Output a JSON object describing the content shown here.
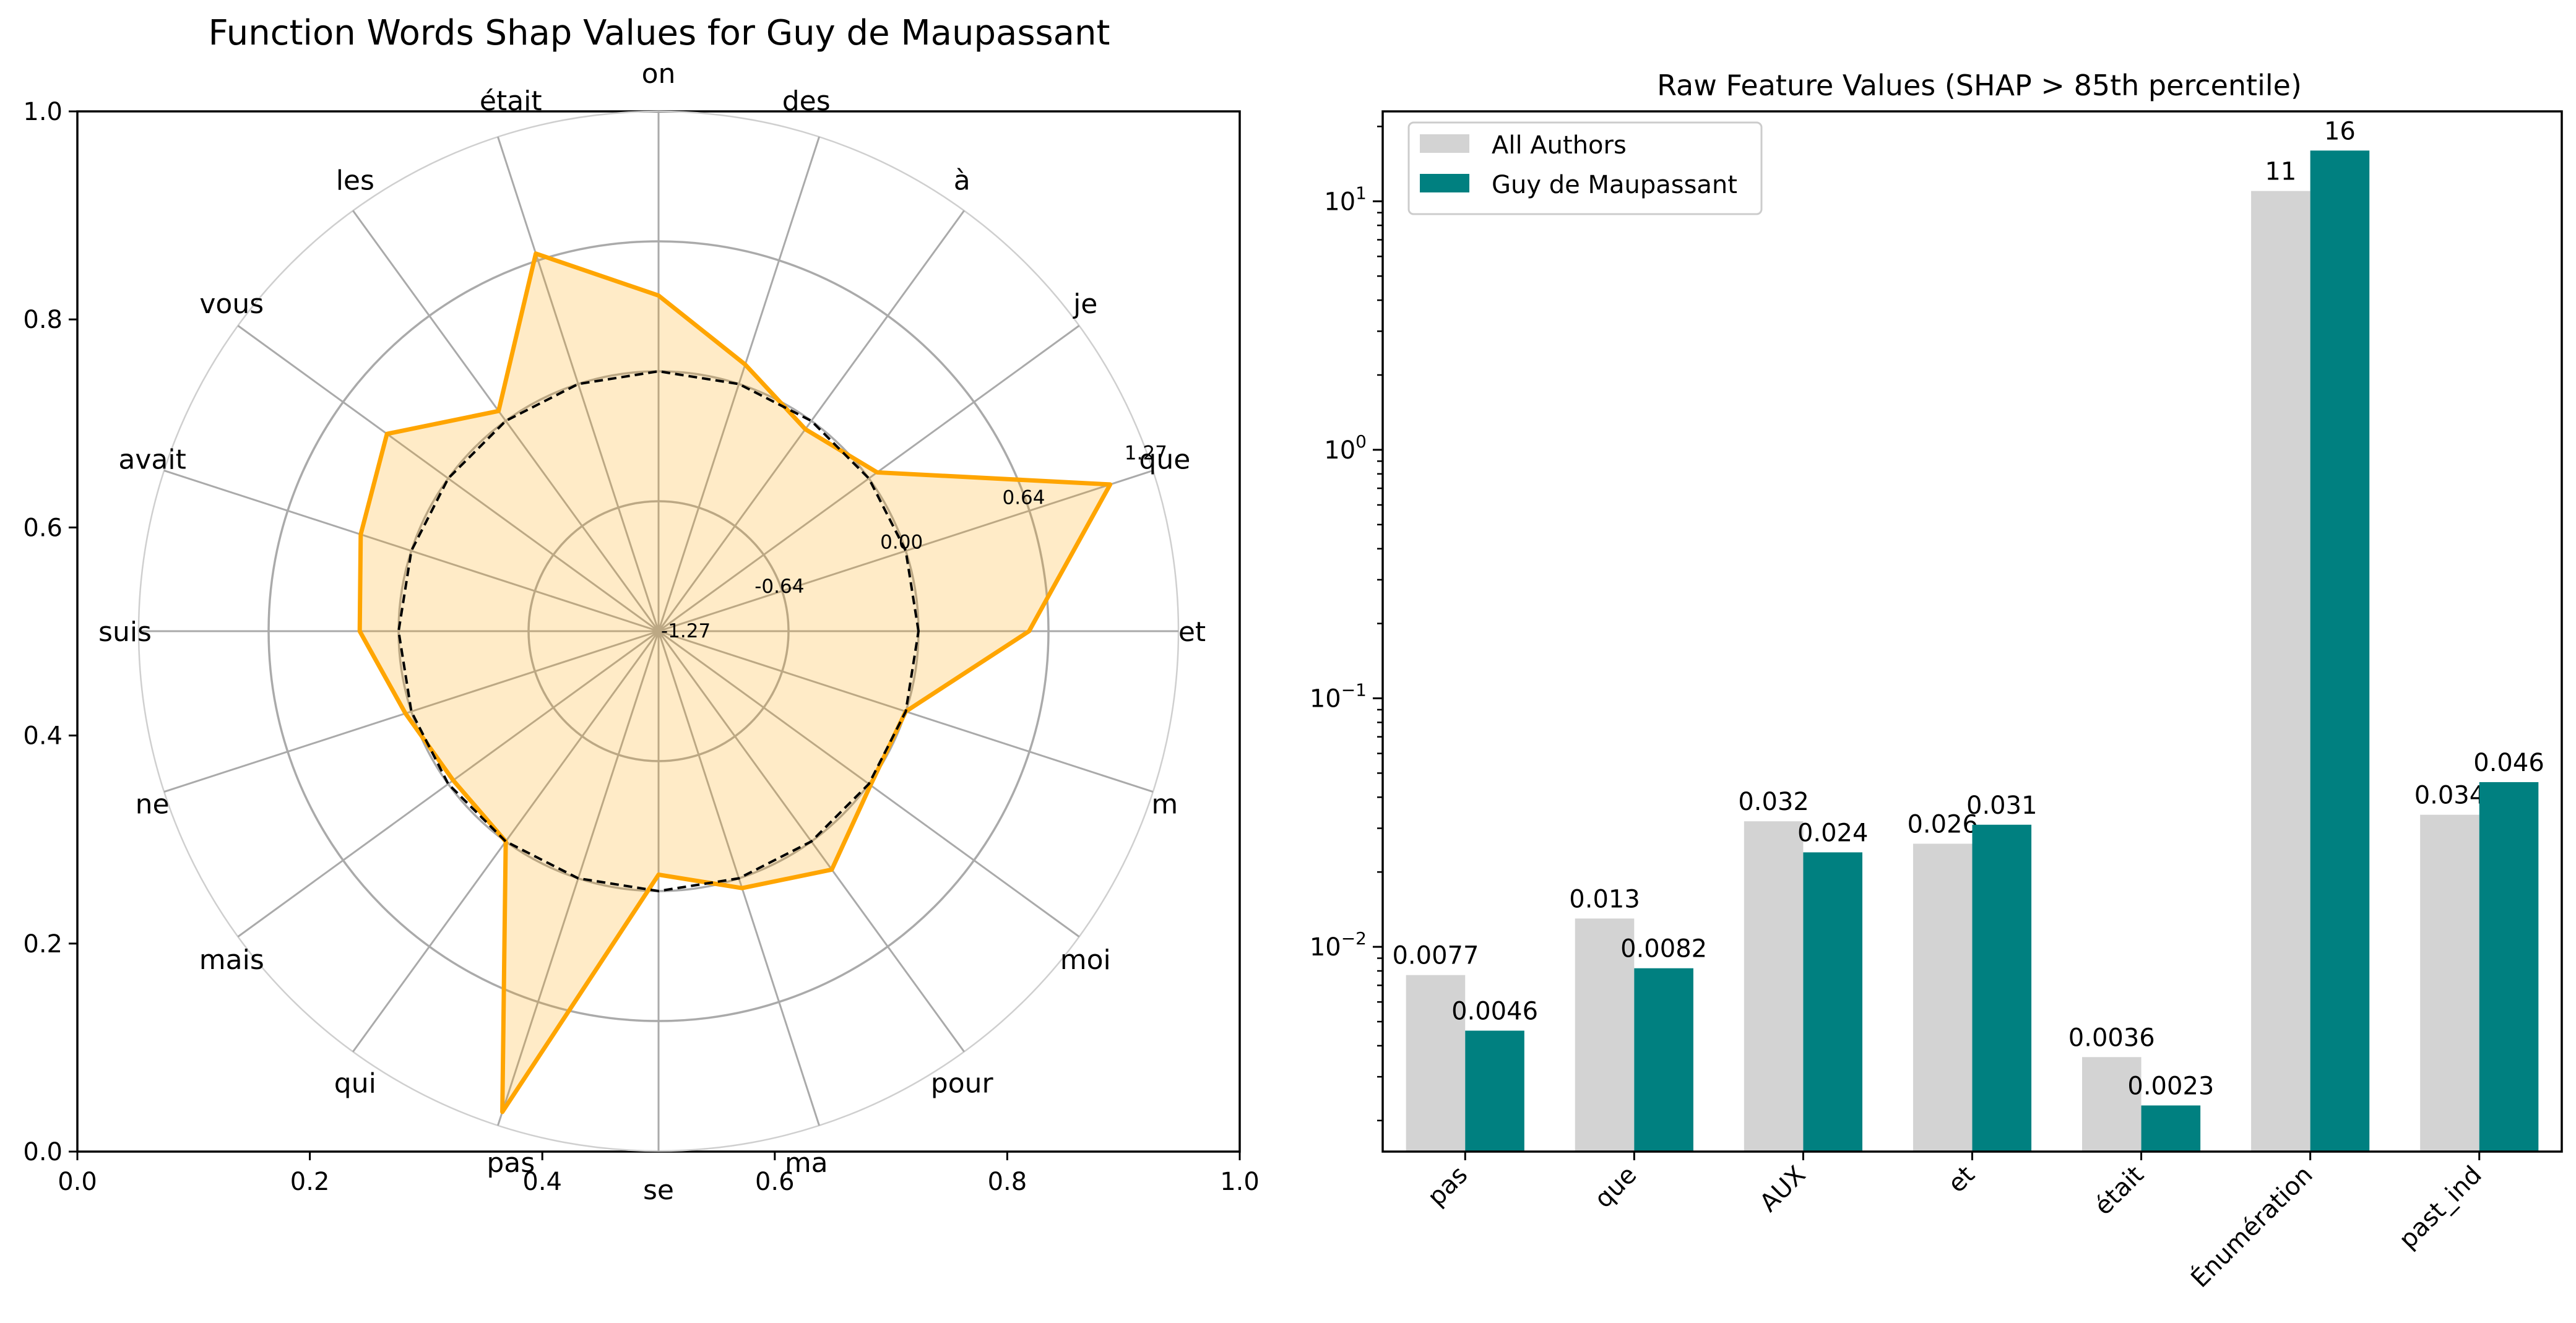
{
  "chart_data": [
    {
      "type": "radar",
      "title": "Function Words Shap Values for Guy de Maupassant",
      "categories": [
        "et",
        "que",
        "je",
        "à",
        "des",
        "on",
        "était",
        "les",
        "vous",
        "avait",
        "suis",
        "ne",
        "mais",
        "qui",
        "pas",
        "se",
        "ma",
        "pour",
        "moi",
        "m"
      ],
      "series": [
        {
          "name": "",
          "color": "#FFA500",
          "values": [
            0.54,
            1.05,
            0.05,
            -0.05,
            0.1,
            0.37,
            0.67,
            0.06,
            0.37,
            0.26,
            0.19,
            0.03,
            -0.03,
            0.0,
            1.2,
            -0.08,
            0.05,
            0.17,
            0.01,
            0.0
          ]
        },
        {
          "name": "",
          "color": "#000000",
          "dashed": true,
          "values": [
            0,
            0,
            0,
            0,
            0,
            0,
            0,
            0,
            0,
            0,
            0,
            0,
            0,
            0,
            0,
            0,
            0,
            0,
            0,
            0
          ]
        }
      ],
      "rlim": [
        -1.27,
        1.27
      ],
      "ring_labels": [
        "-1.27",
        "-0.64",
        "0.00",
        "0.64",
        "1.27"
      ],
      "frame_xticks": [
        "0.0",
        "0.2",
        "0.4",
        "0.6",
        "0.8",
        "1.0"
      ],
      "frame_yticks": [
        "0.0",
        "0.2",
        "0.4",
        "0.6",
        "0.8",
        "1.0"
      ],
      "grid": true
    },
    {
      "type": "bar",
      "title": "Raw Feature Values (SHAP > 85th percentile)",
      "yscale": "log",
      "ylim": [
        0.0015,
        23
      ],
      "categories": [
        "pas",
        "que",
        "AUX",
        "et",
        "était",
        "Énumération",
        "past_ind"
      ],
      "series": [
        {
          "name": "All Authors",
          "color": "#D3D3D3",
          "values": [
            0.0077,
            0.013,
            0.032,
            0.026,
            0.0036,
            11,
            0.034
          ],
          "labels": [
            "0.0077",
            "0.013",
            "0.032",
            "0.026",
            "0.0036",
            "11",
            "0.034"
          ]
        },
        {
          "name": "Guy de Maupassant",
          "color": "#008080",
          "values": [
            0.0046,
            0.0082,
            0.024,
            0.031,
            0.0023,
            16,
            0.046
          ],
          "labels": [
            "0.0046",
            "0.0082",
            "0.024",
            "0.031",
            "0.0023",
            "16",
            "0.046"
          ]
        }
      ],
      "y_ticks": [
        {
          "value": 0.01,
          "base": "10",
          "exp": "−2"
        },
        {
          "value": 0.1,
          "base": "10",
          "exp": "−1"
        },
        {
          "value": 1,
          "base": "10",
          "exp": "0"
        },
        {
          "value": 10,
          "base": "10",
          "exp": "1"
        }
      ],
      "legend": "top-left",
      "grid": false
    }
  ]
}
